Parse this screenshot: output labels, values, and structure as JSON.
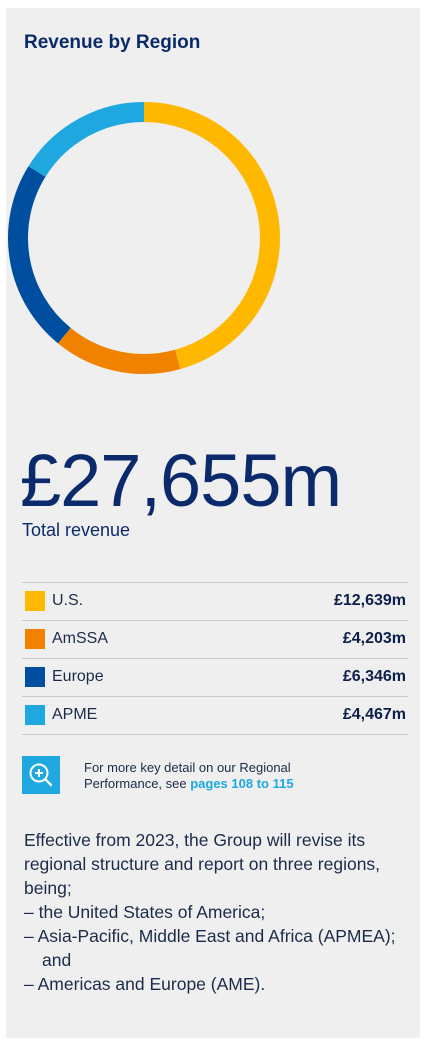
{
  "title": "Revenue by Region",
  "total": {
    "value": "£27,655m",
    "label": "Total revenue"
  },
  "colors": {
    "us": "#ffb800",
    "amssa": "#f08200",
    "europe": "#004ea0",
    "apme": "#1fa8e0"
  },
  "chart_data": {
    "type": "pie",
    "title": "Revenue by Region",
    "categories": [
      "U.S.",
      "AmSSA",
      "Europe",
      "APME"
    ],
    "values": [
      12639,
      4203,
      6346,
      4467
    ],
    "colors": [
      "#ffb800",
      "#f08200",
      "#004ea0",
      "#1fa8e0"
    ],
    "donut": true
  },
  "legend": [
    {
      "name": "U.S.",
      "value": "£12,639m",
      "color": "#ffb800"
    },
    {
      "name": "AmSSA",
      "value": "£4,203m",
      "color": "#f08200"
    },
    {
      "name": "Europe",
      "value": "£6,346m",
      "color": "#004ea0"
    },
    {
      "name": "APME",
      "value": "£4,467m",
      "color": "#1fa8e0"
    }
  ],
  "more_detail": {
    "icon": "zoom-in-icon",
    "line1": "For more key detail on our Regional",
    "line2_prefix": "Performance, see ",
    "link": "pages 108 to 115"
  },
  "paragraph": {
    "intro": "Effective from 2023, the Group will revise its regional structure and report on three regions, being;",
    "bullets": [
      "– the United States of America;",
      "– Asia-Pacific, Middle East and Africa (APMEA); and",
      "– Americas and Europe (AME)."
    ]
  }
}
